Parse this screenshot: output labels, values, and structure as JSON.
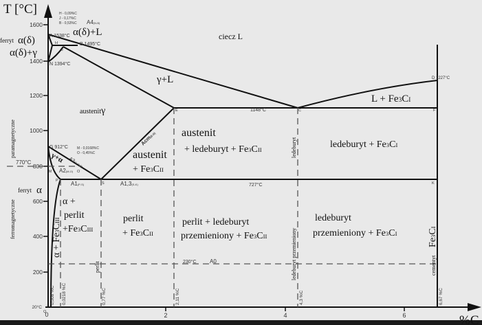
{
  "axes": {
    "y_title": "T [°C]",
    "x_title": "%C",
    "y_ticks": [
      "1600",
      "1400",
      "1200",
      "1000",
      "800",
      "600",
      "400",
      "200"
    ],
    "y_origin": "20°C",
    "x_ticks": [
      "0",
      "2",
      "4",
      "6"
    ]
  },
  "points": {
    "A": "A 1538°C",
    "B": "B 1495°C",
    "H": "H",
    "J": "J",
    "N": "N 1394°C",
    "G": "G 912°C",
    "E": "E",
    "C": "C",
    "D": "D 1227°C",
    "F": "F",
    "P": "P",
    "S": "S",
    "K": "K",
    "Q": "Q",
    "M": "M",
    "O": "O",
    "C_temp": "1148°C",
    "eutectoid_temp": "727°C",
    "curie_temp": "770°C",
    "A0_temp": "230°C"
  },
  "legend_notes": {
    "H": "H - 0,09%C",
    "J": "J - 0,17%C",
    "B": "B - 0,53%C",
    "M": "M - 0,0168%C",
    "O": "O - 0,45%C"
  },
  "lines": {
    "A4": "A4",
    "A4_sub": "(N-B)",
    "A3": "A3",
    "A3_sub": "(G-O-S)",
    "A2": "A2",
    "A2_sub": "(M-O)",
    "A1": "A1",
    "A1_sub": "(P-S)",
    "A13": "A1,3",
    "A13_sub": "(S-K)",
    "Acm": "Acm",
    "Acm_sub": "(E-S)",
    "A0": "A0"
  },
  "regions": {
    "liquid": "ciecz L",
    "ferrite_delta_label": "ferryt",
    "ferrite_delta": "α(δ)",
    "delta_L": "α(δ)+L",
    "delta_gamma": "α(δ)+γ",
    "gamma_L": "γ+L",
    "austenite": "austenit",
    "austenite_gamma": "γ",
    "L_cementite": "L + Fe3CI",
    "aust_ledeb_1": "austenit",
    "aust_ledeb_2": "+ ledeburyt + Fe3CII",
    "ledeburite_cem": "ledeburyt + Fe3CI",
    "aust_cem_1": "austenit",
    "aust_cem_2": "+ Fe3CII",
    "gamma_alpha": "γ+α",
    "ferrite_alpha_label": "ferryt",
    "ferrite_alpha": "α",
    "alpha_perlit_1": "α +",
    "alpha_perlit_2": "perlit",
    "alpha_perlit_3": "+Fe3CIII",
    "alpha_fe3c": "α + Fe3CIII",
    "perlit_cem_1": "perlit",
    "perlit_cem_2": "+ Fe3CII",
    "perlit_ledeb_1": "perlit + ledeburyt",
    "perlit_ledeb_2": "przemieniony  + Fe3CII",
    "ledeb_trans_1": "ledeburyt",
    "ledeb_trans_2": "przemieniony + Fe3CI",
    "paramagnetic": "paramagnetyczne",
    "ferromagnetic": "ferromagnetyczne",
    "vert_perlit": "perlit",
    "vert_ledeburyt": "ledeburyt",
    "vert_ledeb_trans": "ledeburyt przemieniony",
    "vert_cementite": "cementyt",
    "vert_cementite_formula": "Fe3CI"
  },
  "compositions": {
    "c1": "0,008 %C",
    "c2": "0,0218 %C",
    "c3": "0,77 %C",
    "c4": "2,11 %C",
    "c5": "4,3 %C",
    "c6": "6,67 %C"
  }
}
